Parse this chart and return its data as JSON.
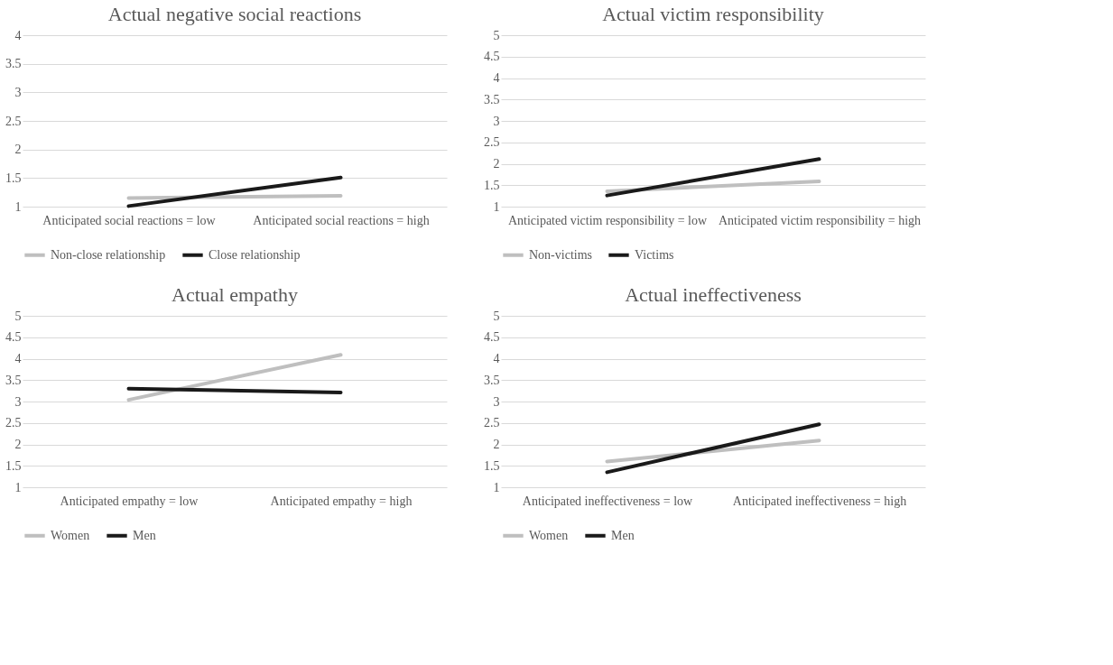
{
  "chart_data": [
    {
      "type": "line",
      "title": "Actual negative social reactions",
      "categories": [
        "Anticipated social reactions = low",
        "Anticipated social reactions = high"
      ],
      "series": [
        {
          "name": "Non-close relationship",
          "color": "#bfbfbf",
          "values": [
            1.15,
            1.19
          ]
        },
        {
          "name": "Close relationship",
          "color": "#1a1a1a",
          "values": [
            1.01,
            1.51
          ]
        }
      ],
      "ylim": [
        1,
        4
      ],
      "yticks": [
        1,
        1.5,
        2,
        2.5,
        3,
        3.5,
        4
      ],
      "grid": "y",
      "legend": "bottom",
      "marker": "none",
      "line_style": "solid"
    },
    {
      "type": "line",
      "title": "Actual victim responsibility",
      "categories": [
        "Anticipated victim responsibility = low",
        "Anticipated victim responsibility = high"
      ],
      "series": [
        {
          "name": "Non-victims",
          "color": "#bfbfbf",
          "values": [
            1.36,
            1.59
          ]
        },
        {
          "name": "Victims",
          "color": "#1a1a1a",
          "values": [
            1.26,
            2.11
          ]
        }
      ],
      "ylim": [
        1,
        5
      ],
      "yticks": [
        1,
        1.5,
        2,
        2.5,
        3,
        3.5,
        4,
        4.5,
        5
      ],
      "grid": "y",
      "legend": "bottom",
      "marker": "none",
      "line_style": "solid"
    },
    {
      "type": "line",
      "title": "Actual empathy",
      "categories": [
        "Anticipated empathy = low",
        "Anticipated empathy = high"
      ],
      "series": [
        {
          "name": "Women",
          "color": "#bfbfbf",
          "values": [
            3.04,
            4.09
          ]
        },
        {
          "name": "Men",
          "color": "#1a1a1a",
          "values": [
            3.3,
            3.21
          ]
        }
      ],
      "ylim": [
        1,
        5
      ],
      "yticks": [
        1,
        1.5,
        2,
        2.5,
        3,
        3.5,
        4,
        4.5,
        5
      ],
      "grid": "y",
      "legend": "bottom",
      "marker": "none",
      "line_style": "solid"
    },
    {
      "type": "line",
      "title": "Actual ineffectiveness",
      "categories": [
        "Anticipated ineffectiveness = low",
        "Anticipated ineffectiveness = high"
      ],
      "series": [
        {
          "name": "Women",
          "color": "#bfbfbf",
          "values": [
            1.6,
            2.09
          ]
        },
        {
          "name": "Men",
          "color": "#1a1a1a",
          "values": [
            1.35,
            2.47
          ]
        }
      ],
      "ylim": [
        1,
        5
      ],
      "yticks": [
        1,
        1.5,
        2,
        2.5,
        3,
        3.5,
        4,
        4.5,
        5
      ],
      "grid": "y",
      "legend": "bottom",
      "marker": "none",
      "line_style": "solid"
    }
  ]
}
